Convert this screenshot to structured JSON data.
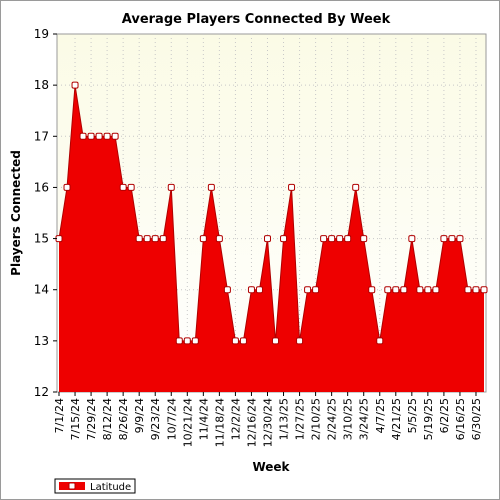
{
  "chart_data": {
    "type": "area",
    "title": "Average Players Connected By Week",
    "xlabel": "Week",
    "ylabel": "Players Connected",
    "ylim": [
      12,
      19
    ],
    "yticks": [
      12,
      13,
      14,
      15,
      16,
      17,
      18,
      19
    ],
    "grid": true,
    "legend_position": "bottom-left",
    "x_tick_labels": [
      "7/1/24",
      "7/15/24",
      "7/29/24",
      "8/12/24",
      "8/26/24",
      "9/9/24",
      "9/23/24",
      "10/7/24",
      "10/21/24",
      "11/4/24",
      "11/18/24",
      "12/2/24",
      "12/16/24",
      "12/30/24",
      "1/13/25",
      "1/27/25",
      "2/10/25",
      "2/24/25",
      "3/10/25",
      "3/24/25",
      "4/7/25",
      "4/21/25",
      "5/5/25",
      "5/19/25",
      "6/2/25",
      "6/16/25",
      "6/30/25"
    ],
    "x": [
      "7/1/24",
      "7/8/24",
      "7/15/24",
      "7/22/24",
      "7/29/24",
      "8/5/24",
      "8/12/24",
      "8/19/24",
      "8/26/24",
      "9/2/24",
      "9/9/24",
      "9/16/24",
      "9/23/24",
      "9/30/24",
      "10/7/24",
      "10/14/24",
      "10/21/24",
      "10/28/24",
      "11/4/24",
      "11/11/24",
      "11/18/24",
      "11/25/24",
      "12/2/24",
      "12/9/24",
      "12/16/24",
      "12/23/24",
      "12/30/24",
      "1/6/25",
      "1/13/25",
      "1/20/25",
      "1/27/25",
      "2/3/25",
      "2/10/25",
      "2/17/25",
      "2/24/25",
      "3/3/25",
      "3/10/25",
      "3/17/25",
      "3/24/25",
      "3/31/25",
      "4/7/25",
      "4/14/25",
      "4/21/25",
      "4/28/25",
      "5/5/25",
      "5/12/25",
      "5/19/25",
      "5/26/25",
      "6/2/25",
      "6/9/25",
      "6/16/25",
      "6/23/25",
      "6/30/25",
      "7/7/25"
    ],
    "series": [
      {
        "name": "Latitude",
        "color": "#ee0000",
        "values": [
          15,
          16,
          18,
          17,
          17,
          17,
          17,
          17,
          16,
          16,
          15,
          15,
          15,
          15,
          16,
          13,
          13,
          13,
          15,
          16,
          15,
          14,
          13,
          13,
          14,
          14,
          15,
          13,
          15,
          16,
          13,
          14,
          14,
          15,
          15,
          15,
          15,
          16,
          15,
          14,
          13,
          14,
          14,
          14,
          15,
          14,
          14,
          14,
          15,
          15,
          15,
          14,
          14,
          14
        ]
      }
    ],
    "colors": {
      "plot_background_top": "#fbfbe6",
      "plot_background_bottom": "#ffffff",
      "fill": "#ee0000",
      "line": "#b00000",
      "marker_fill": "#ffffff"
    }
  }
}
